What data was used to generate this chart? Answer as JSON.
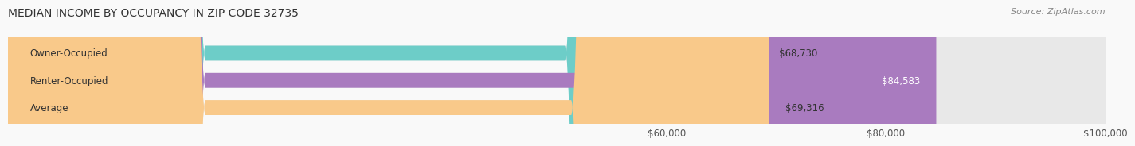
{
  "title": "MEDIAN INCOME BY OCCUPANCY IN ZIP CODE 32735",
  "source": "Source: ZipAtlas.com",
  "categories": [
    "Owner-Occupied",
    "Renter-Occupied",
    "Average"
  ],
  "values": [
    68730,
    84583,
    69316
  ],
  "bar_colors": [
    "#6dcdc8",
    "#a97bbf",
    "#f9c98a"
  ],
  "bar_bg_color": "#eeeeee",
  "labels": [
    "$68,730",
    "$84,583",
    "$69,316"
  ],
  "x_min": 0,
  "x_max": 100000,
  "x_ticks": [
    60000,
    80000,
    100000
  ],
  "x_tick_labels": [
    "$60,000",
    "$80,000",
    "$100,000"
  ],
  "bar_height": 0.55,
  "title_fontsize": 10,
  "label_fontsize": 8.5,
  "tick_fontsize": 8.5,
  "source_fontsize": 8,
  "background_color": "#f9f9f9",
  "bar_bg_alpha": 0.9
}
